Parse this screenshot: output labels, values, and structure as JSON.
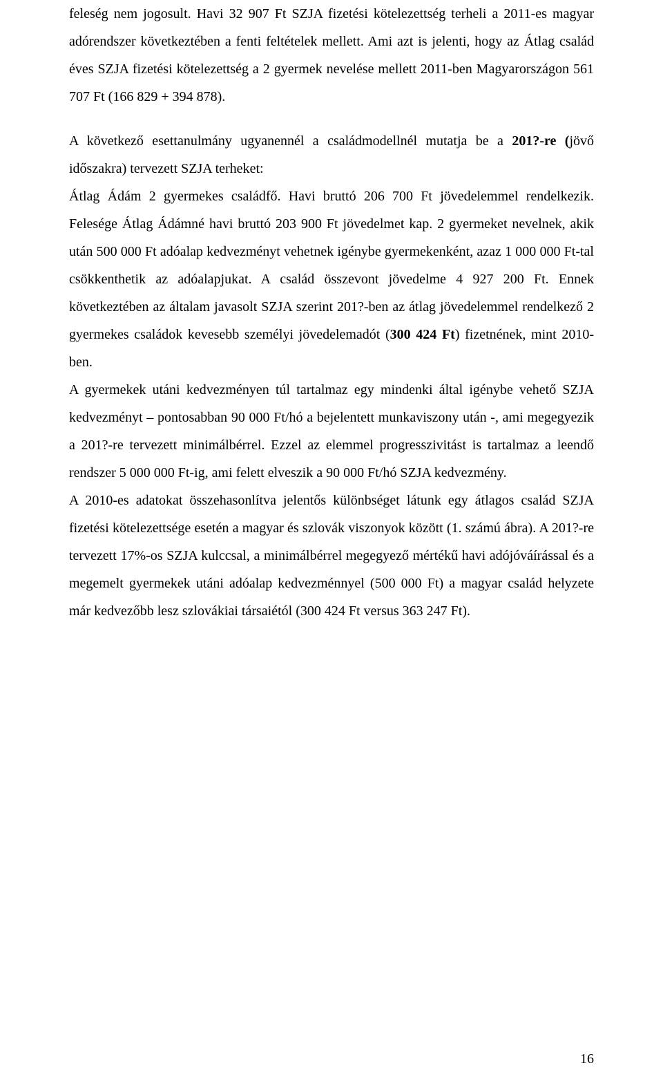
{
  "para1_part1": "feleség nem jogosult. Havi 32 907 Ft SZJA fizetési kötelezettség terheli a 2011-es magyar adórendszer következtében a fenti feltételek mellett. Ami azt is jelenti, hogy az Átlag család éves SZJA fizetési kötelezettség a 2 gyermek nevelése mellett 2011-ben Magyarországon 561 707 Ft (166 829 + 394 878).",
  "para2_lead": "A következő esettanulmány ugyanennél a családmodellnél mutatja be a ",
  "para2_bold1": "201?-re (",
  "para2_mid1": "jövő időszakra) tervezett SZJA terheket:",
  "para3_part1": "Átlag Ádám 2 gyermekes családfő. Havi bruttó 206 700 Ft jövedelemmel rendelkezik. Felesége Átlag Ádámné havi bruttó 203 900 Ft jövedelmet kap. 2 gyermeket nevelnek, akik után 500 000 Ft adóalap kedvezményt vehetnek igénybe gyermekenként, azaz 1 000 000 Ft-tal csökkenthetik az adóalapjukat. A család összevont jövedelme 4 927 200 Ft. Ennek következtében az általam javasolt SZJA szerint 201?-ben az átlag jövedelemmel rendelkező 2 gyermekes családok kevesebb személyi jövedelemadót (",
  "para3_bold": "300 424 Ft",
  "para3_part2": ") fizetnének, mint 2010-ben.",
  "para4": "A gyermekek utáni kedvezményen túl tartalmaz egy mindenki által igénybe vehető SZJA kedvezményt – pontosabban 90 000 Ft/hó a bejelentett munkaviszony után -, ami megegyezik a 201?-re tervezett minimálbérrel. Ezzel az elemmel progresszivitást is tartalmaz a leendő rendszer 5 000 000 Ft-ig, ami felett elveszik a 90 000 Ft/hó SZJA kedvezmény.",
  "para5": "A 2010-es adatokat összehasonlítva jelentős különbséget látunk egy átlagos család SZJA fizetési kötelezettsége esetén a magyar és szlovák viszonyok között (1. számú ábra). A 201?-re tervezett 17%-os SZJA kulccsal, a minimálbérrel megegyező mértékű havi adójóváírással és a megemelt gyermekek utáni adóalap kedvezménnyel (500 000 Ft) a magyar család helyzete már kedvezőbb lesz szlovákiai társaiétól (300 424 Ft versus 363 247 Ft).",
  "page_number": "16"
}
